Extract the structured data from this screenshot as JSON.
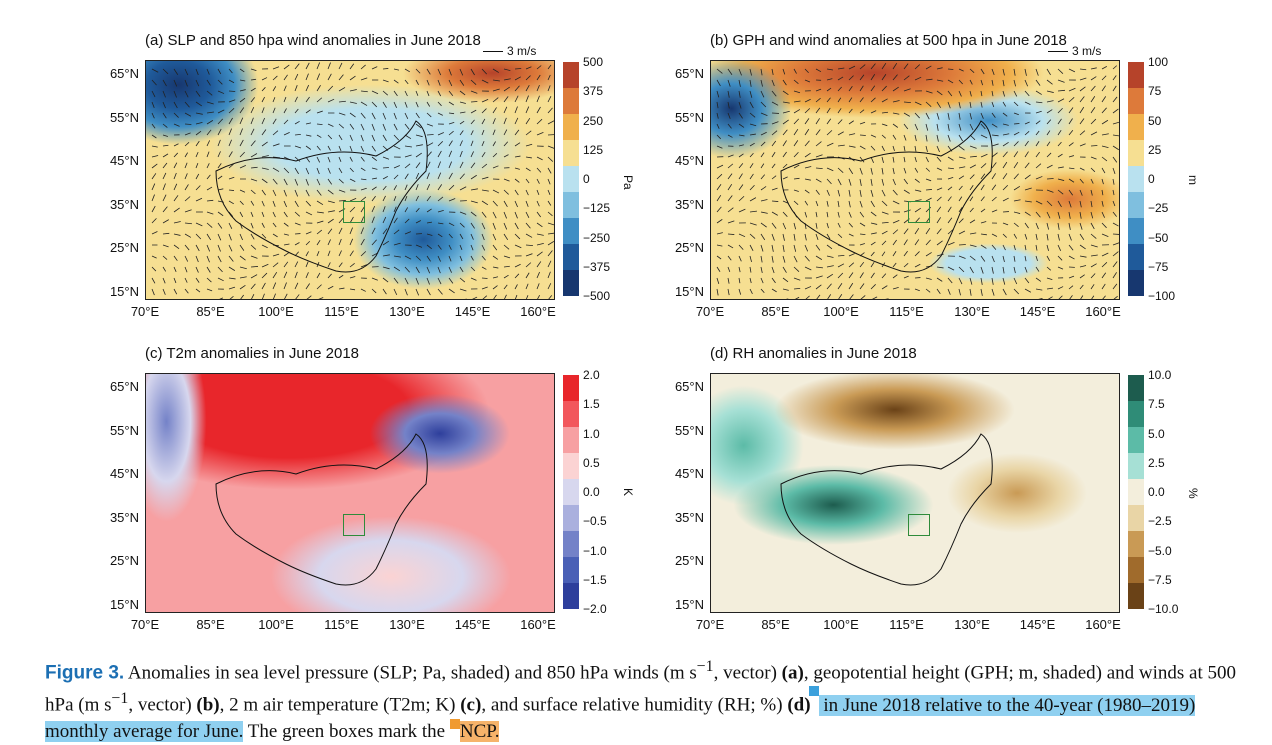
{
  "panels": [
    {
      "id": "a",
      "title": "(a) SLP and 850 hpa wind anomalies in June 2018",
      "ref": "3 m/s",
      "unit": "Pa",
      "cb_ticks": [
        "500",
        "375",
        "250",
        "125",
        "0",
        "−125",
        "−250",
        "−375",
        "−500"
      ],
      "cb_colors": [
        "#b6432a",
        "#dd7a3a",
        "#f0b04c",
        "#f6df92",
        "#b9e1ef",
        "#7fbfdf",
        "#3f8ec4",
        "#1f5a9a",
        "#17376f"
      ]
    },
    {
      "id": "b",
      "title": "(b) GPH and wind anomalies at 500 hpa in June 2018",
      "ref": "3 m/s",
      "unit": "m",
      "cb_ticks": [
        "100",
        "75",
        "50",
        "25",
        "0",
        "−25",
        "−50",
        "−75",
        "−100"
      ],
      "cb_colors": [
        "#b6432a",
        "#dd7a3a",
        "#f0b04c",
        "#f6df92",
        "#b9e1ef",
        "#7fbfdf",
        "#3f8ec4",
        "#1f5a9a",
        "#17376f"
      ]
    },
    {
      "id": "c",
      "title": "(c) T2m anomalies in June 2018",
      "ref": "",
      "unit": "K",
      "cb_ticks": [
        "2.0",
        "1.5",
        "1.0",
        "0.5",
        "0.0",
        "−0.5",
        "−1.0",
        "−1.5",
        "−2.0"
      ],
      "cb_colors": [
        "#e8262b",
        "#f2575c",
        "#f7a0a2",
        "#fbd3d3",
        "#d7d7ee",
        "#aab0de",
        "#7482c8",
        "#4a60b6",
        "#2e3f9c"
      ]
    },
    {
      "id": "d",
      "title": "(d) RH anomalies in June 2018",
      "ref": "",
      "unit": "%",
      "cb_ticks": [
        "10.0",
        "7.5",
        "5.0",
        "2.5",
        "0.0",
        "−2.5",
        "−5.0",
        "−7.5",
        "−10.0"
      ],
      "cb_colors": [
        "#1d5c4e",
        "#2f8c77",
        "#5cbba7",
        "#a6e0d5",
        "#f3eedc",
        "#e9d5a6",
        "#c99a55",
        "#a06b2c",
        "#6a4217"
      ]
    }
  ],
  "lat_ticks": [
    "65°N",
    "55°N",
    "45°N",
    "35°N",
    "25°N",
    "15°N"
  ],
  "lon_ticks": [
    "70°E",
    "85°E",
    "100°E",
    "115°E",
    "130°E",
    "145°E",
    "160°E"
  ],
  "caption": {
    "figlabel": "Figure 3.",
    "part1": " Anomalies in sea level pressure (SLP; Pa, shaded) and 850 hPa winds (m s",
    "sup1": "−1",
    "part2": ", vector) ",
    "a": "(a)",
    "part3": ", geopotential height (GPH; m, shaded) and winds at 500 hPa (m s",
    "sup2": "−1",
    "part4": ", vector) ",
    "b": "(b)",
    "part5": ", 2 m air temperature (T2m; K) ",
    "c": "(c)",
    "part6": ", and surface relative humidity (RH; %) ",
    "d": "(d)",
    "hl1": " in June 2018 relative to the 40-year (1980–2019) monthly average for June.",
    "part7": " The green boxes mark the ",
    "hl2": "NCP."
  }
}
